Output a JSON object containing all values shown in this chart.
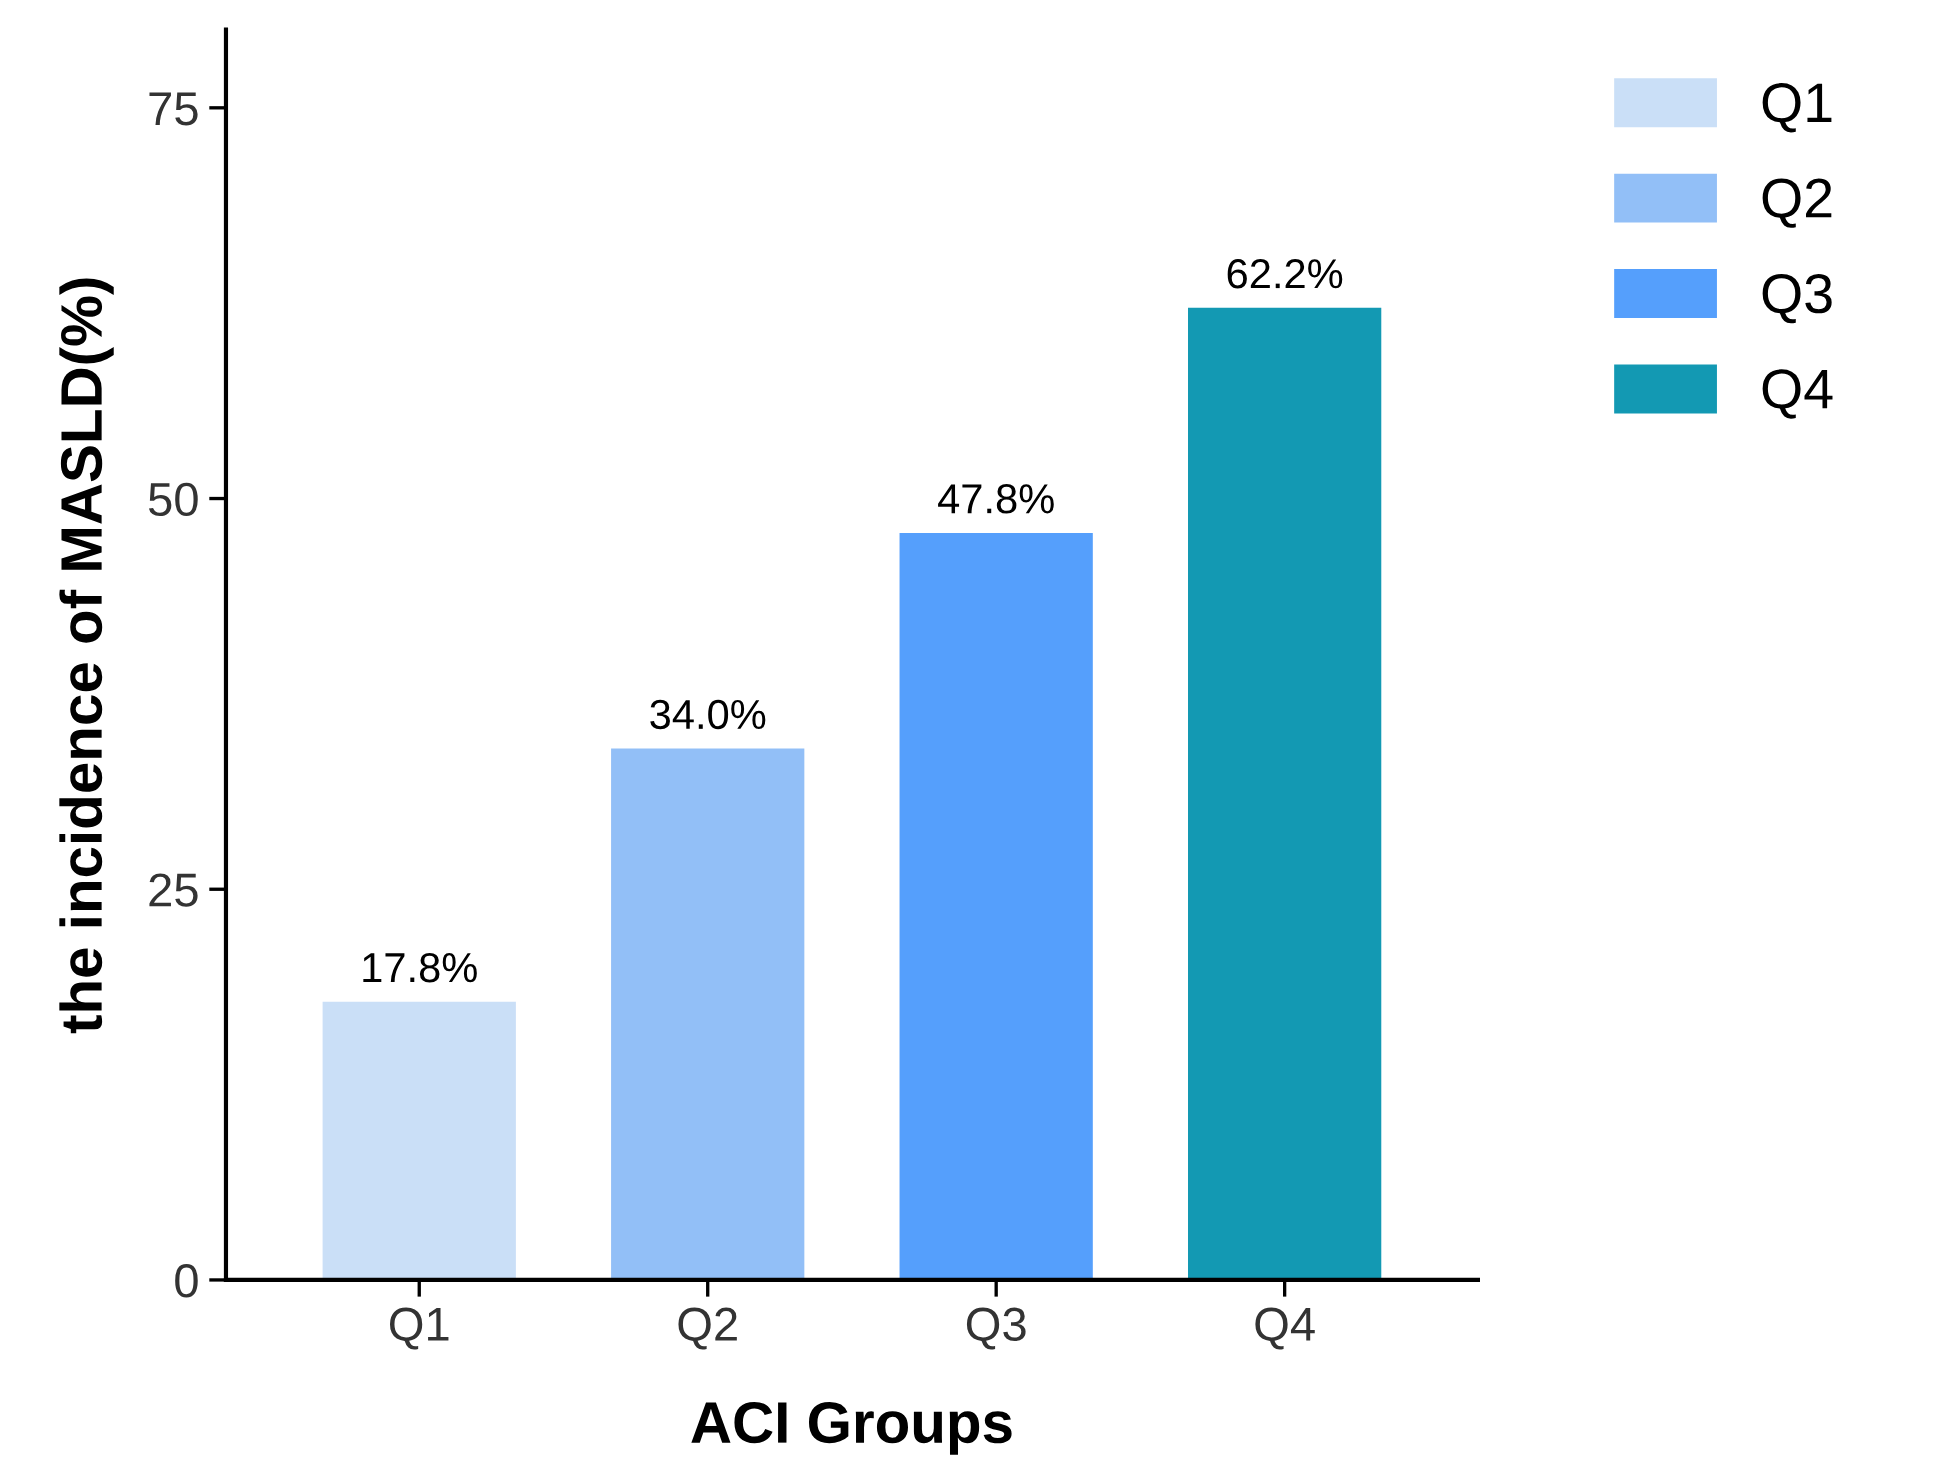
{
  "chart_data": {
    "type": "bar",
    "xlabel": "ACI Groups",
    "ylabel": "the incidence of MASLD(%)",
    "categories": [
      "Q1",
      "Q2",
      "Q3",
      "Q4"
    ],
    "series": [
      {
        "name": "Q1",
        "color": "#cadff7",
        "values": [
          17.8,
          null,
          null,
          null
        ],
        "value_labels": [
          "17.8%",
          null,
          null,
          null
        ]
      },
      {
        "name": "Q2",
        "color": "#92bff7",
        "values": [
          null,
          34.0,
          null,
          null
        ],
        "value_labels": [
          null,
          "34.0%",
          null,
          null
        ]
      },
      {
        "name": "Q3",
        "color": "#559ffc",
        "values": [
          null,
          null,
          47.8,
          null
        ],
        "value_labels": [
          null,
          null,
          "47.8%",
          null
        ]
      },
      {
        "name": "Q4",
        "color": "#1399b3",
        "values": [
          null,
          null,
          null,
          62.2
        ],
        "value_labels": [
          null,
          null,
          null,
          "62.2%"
        ]
      }
    ],
    "ylim": [
      0,
      80
    ],
    "yticks": [
      0,
      25,
      50,
      75
    ],
    "grid": false,
    "legend": "top right"
  }
}
